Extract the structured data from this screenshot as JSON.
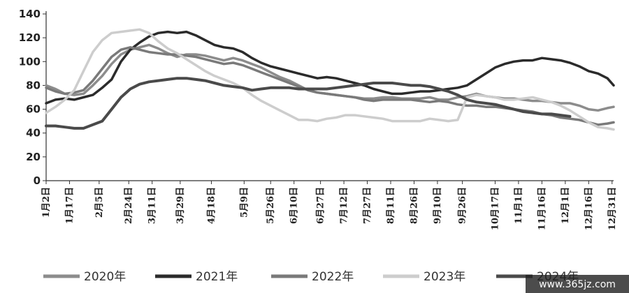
{
  "chart_data": {
    "type": "line",
    "title": "",
    "xlabel": "",
    "ylabel": "",
    "ylim": [
      0,
      140
    ],
    "yticks": [
      0,
      20,
      40,
      60,
      80,
      100,
      120,
      140
    ],
    "xlim_day": [
      2,
      366
    ],
    "x_ticks": [
      "1月2日",
      "1月17日",
      "2月5日",
      "2月24日",
      "3月11日",
      "3月29日",
      "4月18日",
      "5月9日",
      "5月26日",
      "6月10日",
      "6月27日",
      "7月12日",
      "7月27日",
      "8月11日",
      "8月26日",
      "9月10日",
      "9月26日",
      "10月17日",
      "11月1日",
      "11月16日",
      "12月1日",
      "12月16日",
      "12月31日"
    ],
    "x_tick_days": [
      2,
      17,
      36,
      55,
      70,
      88,
      108,
      129,
      146,
      161,
      178,
      193,
      208,
      223,
      238,
      253,
      269,
      290,
      305,
      320,
      335,
      350,
      365
    ],
    "grid": false,
    "legend_position": "bottom",
    "series": [
      {
        "name": "2020年",
        "color": "#8c8c8c",
        "width": 3.5,
        "points": [
          [
            2,
            80
          ],
          [
            8,
            77
          ],
          [
            14,
            73
          ],
          [
            20,
            72
          ],
          [
            26,
            73
          ],
          [
            32,
            80
          ],
          [
            38,
            88
          ],
          [
            44,
            98
          ],
          [
            50,
            106
          ],
          [
            56,
            110
          ],
          [
            62,
            112
          ],
          [
            68,
            114
          ],
          [
            74,
            111
          ],
          [
            80,
            107
          ],
          [
            86,
            104
          ],
          [
            92,
            106
          ],
          [
            98,
            106
          ],
          [
            104,
            105
          ],
          [
            110,
            103
          ],
          [
            116,
            101
          ],
          [
            122,
            103
          ],
          [
            128,
            101
          ],
          [
            134,
            98
          ],
          [
            140,
            95
          ],
          [
            146,
            91
          ],
          [
            152,
            87
          ],
          [
            158,
            84
          ],
          [
            164,
            80
          ],
          [
            170,
            76
          ],
          [
            176,
            74
          ],
          [
            182,
            73
          ],
          [
            188,
            72
          ],
          [
            194,
            71
          ],
          [
            200,
            70
          ],
          [
            206,
            69
          ],
          [
            212,
            69
          ],
          [
            218,
            70
          ],
          [
            224,
            70
          ],
          [
            230,
            69
          ],
          [
            236,
            69
          ],
          [
            242,
            69
          ],
          [
            248,
            70
          ],
          [
            254,
            68
          ],
          [
            260,
            68
          ],
          [
            266,
            70
          ],
          [
            272,
            71
          ],
          [
            278,
            73
          ],
          [
            284,
            71
          ],
          [
            290,
            70
          ],
          [
            296,
            69
          ],
          [
            302,
            69
          ],
          [
            308,
            68
          ],
          [
            314,
            67
          ],
          [
            320,
            67
          ],
          [
            326,
            66
          ],
          [
            332,
            65
          ],
          [
            338,
            65
          ],
          [
            344,
            63
          ],
          [
            350,
            60
          ],
          [
            356,
            59
          ],
          [
            362,
            61
          ],
          [
            366,
            62
          ]
        ]
      },
      {
        "name": "2021年",
        "color": "#2b2b2b",
        "width": 3.5,
        "points": [
          [
            2,
            65
          ],
          [
            8,
            68
          ],
          [
            14,
            69
          ],
          [
            20,
            68
          ],
          [
            26,
            70
          ],
          [
            32,
            72
          ],
          [
            38,
            78
          ],
          [
            44,
            85
          ],
          [
            50,
            100
          ],
          [
            56,
            110
          ],
          [
            62,
            116
          ],
          [
            68,
            121
          ],
          [
            74,
            124
          ],
          [
            80,
            125
          ],
          [
            86,
            124
          ],
          [
            92,
            125
          ],
          [
            98,
            122
          ],
          [
            104,
            118
          ],
          [
            110,
            114
          ],
          [
            116,
            112
          ],
          [
            122,
            111
          ],
          [
            128,
            108
          ],
          [
            134,
            103
          ],
          [
            140,
            99
          ],
          [
            146,
            96
          ],
          [
            152,
            94
          ],
          [
            158,
            92
          ],
          [
            164,
            90
          ],
          [
            170,
            88
          ],
          [
            176,
            86
          ],
          [
            182,
            87
          ],
          [
            188,
            86
          ],
          [
            194,
            84
          ],
          [
            200,
            82
          ],
          [
            206,
            80
          ],
          [
            212,
            77
          ],
          [
            218,
            75
          ],
          [
            224,
            73
          ],
          [
            230,
            73
          ],
          [
            236,
            74
          ],
          [
            242,
            75
          ],
          [
            248,
            75
          ],
          [
            254,
            76
          ],
          [
            260,
            77
          ],
          [
            266,
            78
          ],
          [
            272,
            80
          ],
          [
            278,
            85
          ],
          [
            284,
            90
          ],
          [
            290,
            95
          ],
          [
            296,
            98
          ],
          [
            302,
            100
          ],
          [
            308,
            101
          ],
          [
            314,
            101
          ],
          [
            320,
            103
          ],
          [
            326,
            102
          ],
          [
            332,
            101
          ],
          [
            338,
            99
          ],
          [
            344,
            96
          ],
          [
            350,
            92
          ],
          [
            356,
            90
          ],
          [
            362,
            86
          ],
          [
            366,
            80
          ]
        ]
      },
      {
        "name": "2022年",
        "color": "#7a7a7a",
        "width": 3.5,
        "points": [
          [
            2,
            78
          ],
          [
            8,
            75
          ],
          [
            14,
            73
          ],
          [
            20,
            74
          ],
          [
            26,
            76
          ],
          [
            32,
            84
          ],
          [
            38,
            94
          ],
          [
            44,
            104
          ],
          [
            50,
            110
          ],
          [
            56,
            112
          ],
          [
            62,
            110
          ],
          [
            68,
            108
          ],
          [
            74,
            107
          ],
          [
            80,
            106
          ],
          [
            86,
            106
          ],
          [
            92,
            105
          ],
          [
            98,
            104
          ],
          [
            104,
            102
          ],
          [
            110,
            100
          ],
          [
            116,
            98
          ],
          [
            122,
            99
          ],
          [
            128,
            97
          ],
          [
            134,
            94
          ],
          [
            140,
            91
          ],
          [
            146,
            88
          ],
          [
            152,
            85
          ],
          [
            158,
            82
          ],
          [
            164,
            79
          ],
          [
            170,
            76
          ],
          [
            176,
            74
          ],
          [
            182,
            73
          ],
          [
            188,
            72
          ],
          [
            194,
            71
          ],
          [
            200,
            70
          ],
          [
            206,
            68
          ],
          [
            212,
            67
          ],
          [
            218,
            68
          ],
          [
            224,
            68
          ],
          [
            230,
            68
          ],
          [
            236,
            68
          ],
          [
            242,
            67
          ],
          [
            248,
            66
          ],
          [
            254,
            67
          ],
          [
            260,
            66
          ],
          [
            266,
            64
          ],
          [
            272,
            63
          ],
          [
            278,
            63
          ],
          [
            284,
            62
          ],
          [
            290,
            62
          ],
          [
            296,
            61
          ],
          [
            302,
            60
          ],
          [
            308,
            59
          ],
          [
            314,
            58
          ],
          [
            320,
            56
          ],
          [
            326,
            55
          ],
          [
            332,
            53
          ],
          [
            338,
            52
          ],
          [
            344,
            51
          ],
          [
            350,
            49
          ],
          [
            356,
            47
          ],
          [
            362,
            48
          ],
          [
            366,
            49
          ]
        ]
      },
      {
        "name": "2023年",
        "color": "#cdcdcd",
        "width": 3.5,
        "points": [
          [
            2,
            57
          ],
          [
            8,
            62
          ],
          [
            14,
            68
          ],
          [
            20,
            76
          ],
          [
            26,
            92
          ],
          [
            32,
            108
          ],
          [
            38,
            118
          ],
          [
            44,
            124
          ],
          [
            50,
            125
          ],
          [
            56,
            126
          ],
          [
            62,
            127
          ],
          [
            68,
            124
          ],
          [
            74,
            117
          ],
          [
            80,
            111
          ],
          [
            86,
            107
          ],
          [
            92,
            102
          ],
          [
            98,
            97
          ],
          [
            104,
            92
          ],
          [
            110,
            88
          ],
          [
            116,
            85
          ],
          [
            122,
            82
          ],
          [
            128,
            78
          ],
          [
            134,
            72
          ],
          [
            140,
            67
          ],
          [
            146,
            63
          ],
          [
            152,
            59
          ],
          [
            158,
            55
          ],
          [
            164,
            51
          ],
          [
            170,
            51
          ],
          [
            176,
            50
          ],
          [
            182,
            52
          ],
          [
            188,
            53
          ],
          [
            194,
            55
          ],
          [
            200,
            55
          ],
          [
            206,
            54
          ],
          [
            212,
            53
          ],
          [
            218,
            52
          ],
          [
            224,
            50
          ],
          [
            230,
            50
          ],
          [
            236,
            50
          ],
          [
            242,
            50
          ],
          [
            248,
            52
          ],
          [
            254,
            51
          ],
          [
            260,
            50
          ],
          [
            266,
            51
          ],
          [
            272,
            70
          ],
          [
            278,
            72
          ],
          [
            284,
            71
          ],
          [
            290,
            70
          ],
          [
            296,
            68
          ],
          [
            302,
            68
          ],
          [
            308,
            69
          ],
          [
            314,
            70
          ],
          [
            320,
            68
          ],
          [
            326,
            66
          ],
          [
            332,
            63
          ],
          [
            338,
            59
          ],
          [
            344,
            54
          ],
          [
            350,
            49
          ],
          [
            356,
            45
          ],
          [
            362,
            44
          ],
          [
            366,
            43
          ]
        ]
      },
      {
        "name": "2024年",
        "color": "#4a4a4a",
        "width": 4,
        "points": [
          [
            2,
            46
          ],
          [
            8,
            46
          ],
          [
            14,
            45
          ],
          [
            20,
            44
          ],
          [
            26,
            44
          ],
          [
            32,
            47
          ],
          [
            38,
            50
          ],
          [
            44,
            60
          ],
          [
            50,
            70
          ],
          [
            56,
            77
          ],
          [
            62,
            81
          ],
          [
            68,
            83
          ],
          [
            74,
            84
          ],
          [
            80,
            85
          ],
          [
            86,
            86
          ],
          [
            92,
            86
          ],
          [
            98,
            85
          ],
          [
            104,
            84
          ],
          [
            110,
            82
          ],
          [
            116,
            80
          ],
          [
            122,
            79
          ],
          [
            128,
            78
          ],
          [
            134,
            76
          ],
          [
            140,
            77
          ],
          [
            146,
            78
          ],
          [
            152,
            78
          ],
          [
            158,
            78
          ],
          [
            164,
            77
          ],
          [
            170,
            77
          ],
          [
            176,
            77
          ],
          [
            182,
            77
          ],
          [
            188,
            78
          ],
          [
            194,
            79
          ],
          [
            200,
            80
          ],
          [
            206,
            81
          ],
          [
            212,
            82
          ],
          [
            218,
            82
          ],
          [
            224,
            82
          ],
          [
            230,
            81
          ],
          [
            236,
            80
          ],
          [
            242,
            80
          ],
          [
            248,
            79
          ],
          [
            254,
            77
          ],
          [
            260,
            75
          ],
          [
            266,
            72
          ],
          [
            272,
            68
          ],
          [
            278,
            66
          ],
          [
            284,
            65
          ],
          [
            290,
            64
          ],
          [
            296,
            62
          ],
          [
            302,
            60
          ],
          [
            308,
            58
          ],
          [
            314,
            57
          ],
          [
            320,
            56
          ],
          [
            326,
            56
          ],
          [
            332,
            55
          ],
          [
            338,
            54
          ]
        ]
      }
    ]
  },
  "watermark": "www.365jz.com"
}
